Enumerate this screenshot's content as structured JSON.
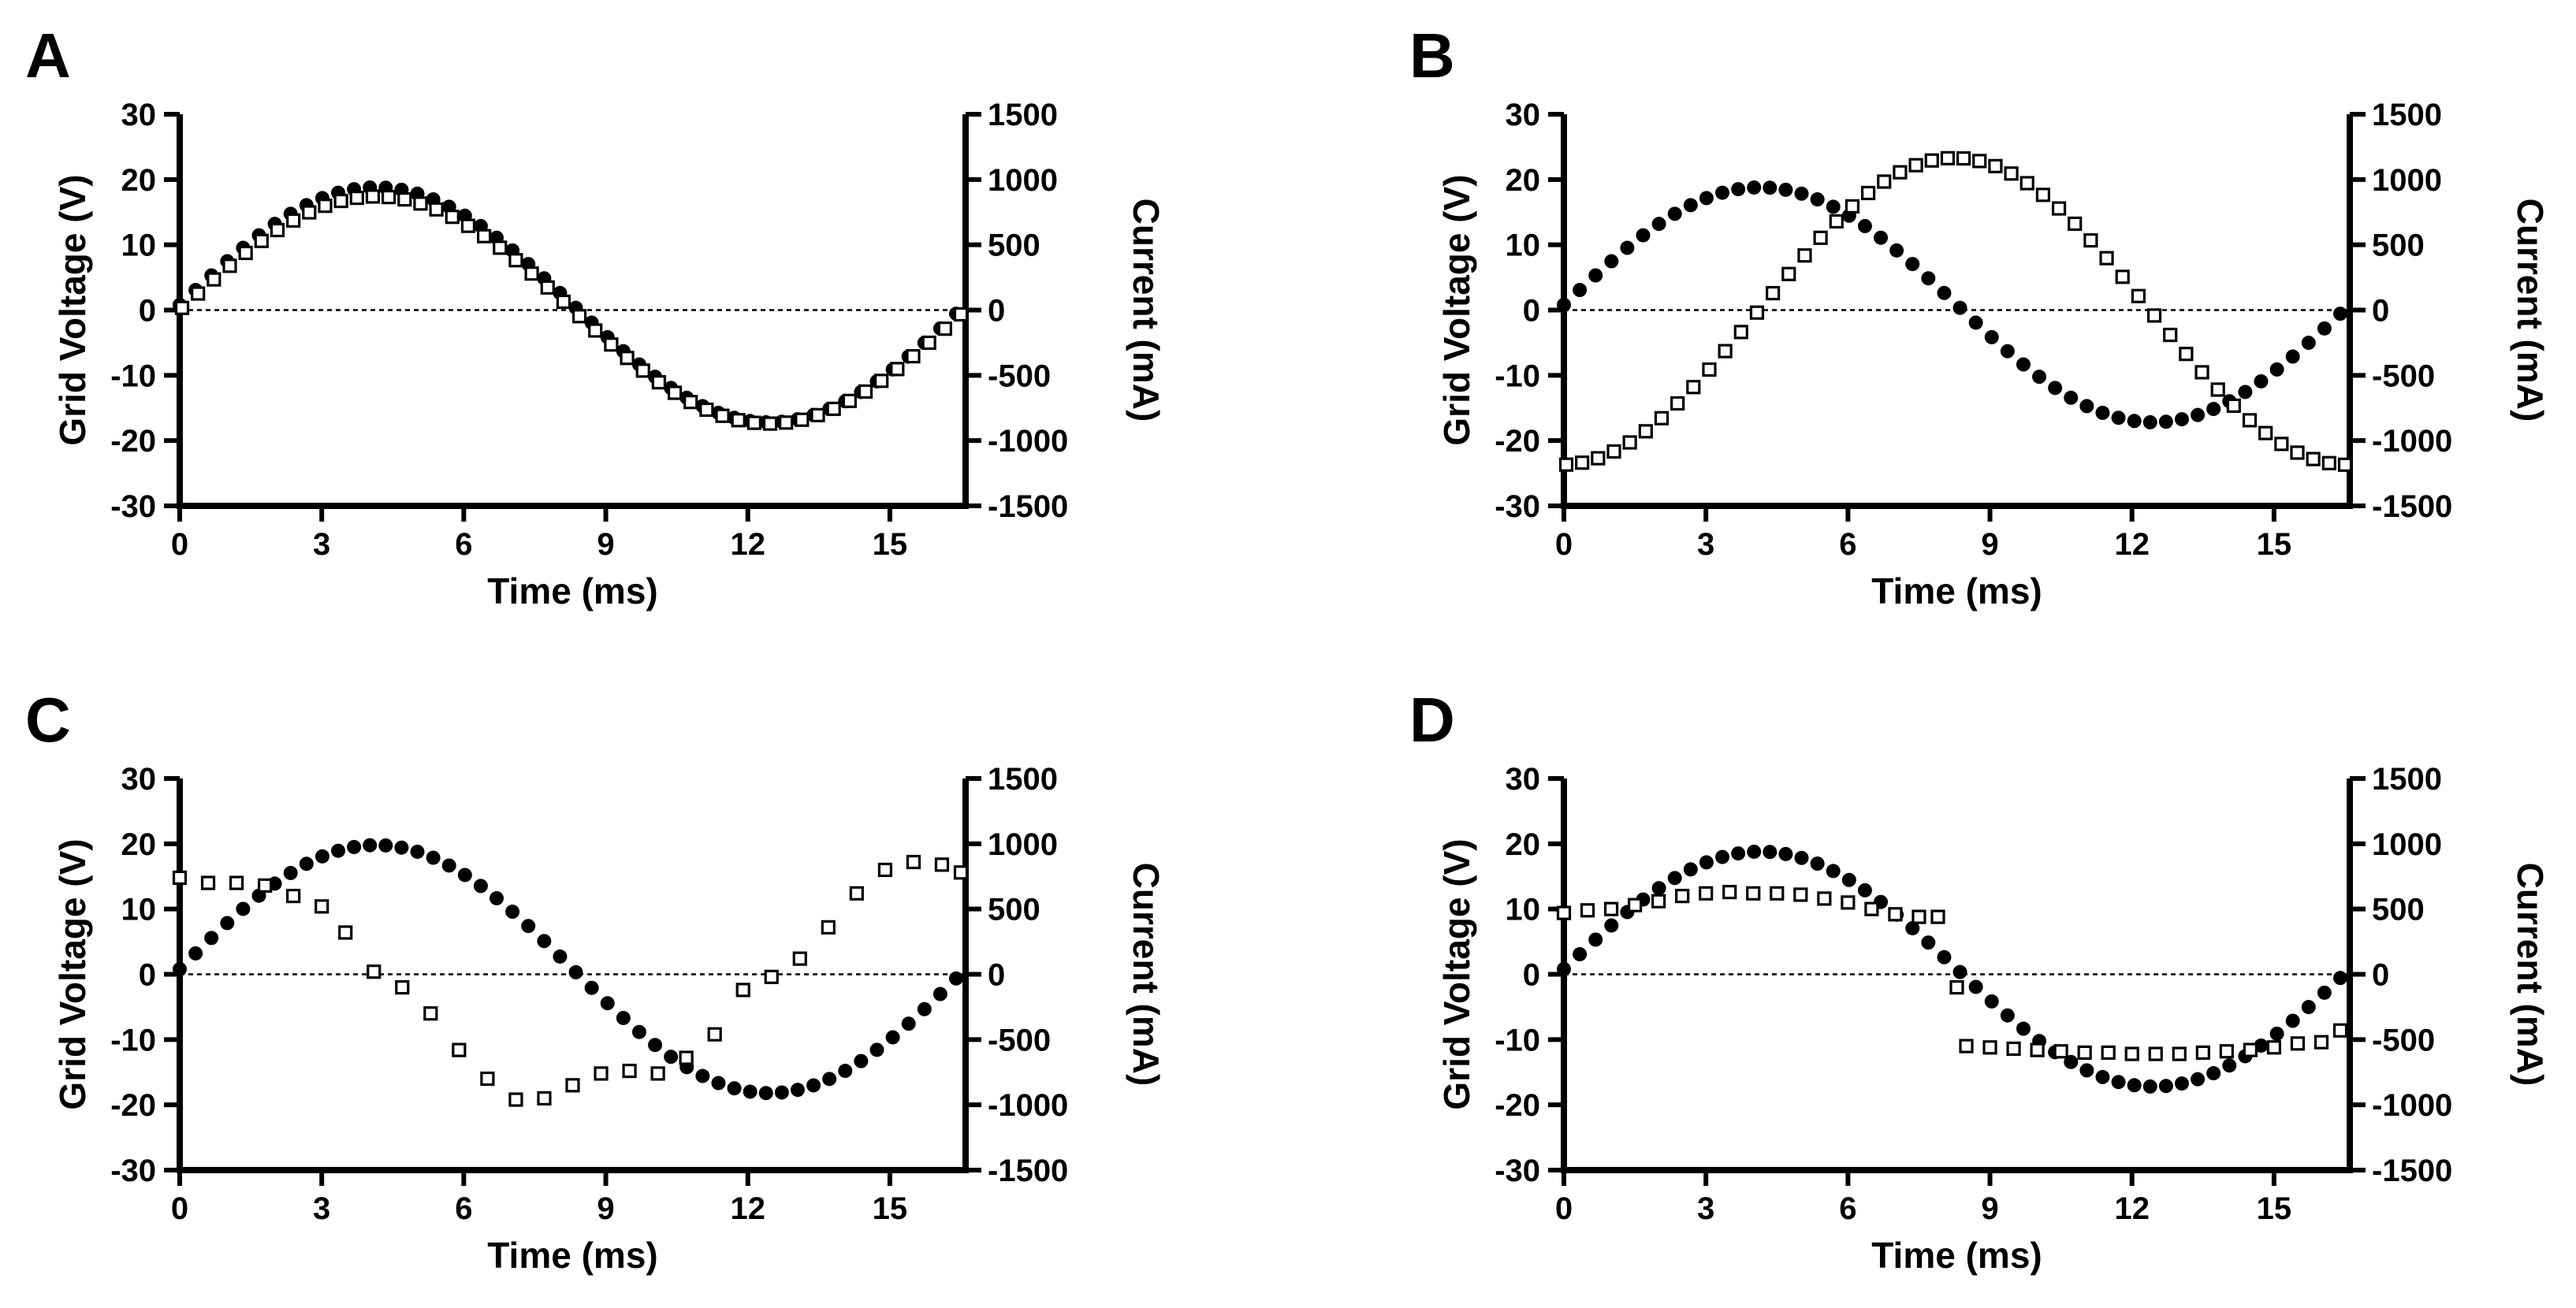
{
  "chart_data": [
    {
      "panel_label": "A",
      "type": "scatter",
      "xlabel": "Time (ms)",
      "ylabel_left": "Grid Voltage (V)",
      "ylabel_right": "Current (mA)",
      "xlim": [
        0,
        16.6
      ],
      "ylim_left": [
        -30,
        30
      ],
      "ylim_right": [
        -1500,
        1500
      ],
      "xticks": [
        0,
        3,
        6,
        9,
        12,
        15
      ],
      "yticks_left": [
        -30,
        -20,
        -10,
        0,
        10,
        20,
        30
      ],
      "yticks_right": [
        -1500,
        -1000,
        -500,
        0,
        500,
        1000,
        1500
      ],
      "zero_reference_line": true,
      "series": [
        {
          "marker": "filled-circle",
          "axis": "left",
          "kind": "sine",
          "params": {
            "amp": 18,
            "period": 16.6,
            "phase_ms": 0,
            "offset": 0.8,
            "n": 50,
            "x0": 0,
            "x1": 16.4
          }
        },
        {
          "marker": "open-square",
          "axis": "right",
          "kind": "sine",
          "params": {
            "amp": 870,
            "period": 16.6,
            "phase_ms": 0,
            "offset": 0,
            "n": 50,
            "x0": 0.05,
            "x1": 16.5
          }
        }
      ]
    },
    {
      "panel_label": "B",
      "type": "scatter",
      "xlabel": "Time (ms)",
      "ylabel_left": "Grid Voltage (V)",
      "ylabel_right": "Current (mA)",
      "xlim": [
        0,
        16.6
      ],
      "ylim_left": [
        -30,
        30
      ],
      "ylim_right": [
        -1500,
        1500
      ],
      "xticks": [
        0,
        3,
        6,
        9,
        12,
        15
      ],
      "yticks_left": [
        -30,
        -20,
        -10,
        0,
        10,
        20,
        30
      ],
      "yticks_right": [
        -1500,
        -1000,
        -500,
        0,
        500,
        1000,
        1500
      ],
      "zero_reference_line": true,
      "series": [
        {
          "marker": "filled-circle",
          "axis": "left",
          "kind": "sine",
          "params": {
            "amp": 18,
            "period": 16.6,
            "phase_ms": 0,
            "offset": 0.8,
            "n": 50,
            "x0": 0,
            "x1": 16.4
          }
        },
        {
          "marker": "open-square",
          "axis": "right",
          "kind": "sine",
          "params": {
            "amp": 1175,
            "period": 16.6,
            "phase_ms": -4.1,
            "offset": -10,
            "n": 50,
            "x0": 0.05,
            "x1": 16.5
          }
        }
      ]
    },
    {
      "panel_label": "C",
      "type": "scatter",
      "xlabel": "Time (ms)",
      "ylabel_left": "Grid Voltage (V)",
      "ylabel_right": "Current (mA)",
      "xlim": [
        0,
        16.6
      ],
      "ylim_left": [
        -30,
        30
      ],
      "ylim_right": [
        -1500,
        1500
      ],
      "xticks": [
        0,
        3,
        6,
        9,
        12,
        15
      ],
      "yticks_left": [
        -30,
        -20,
        -10,
        0,
        10,
        20,
        30
      ],
      "yticks_right": [
        -1500,
        -1000,
        -500,
        0,
        500,
        1000,
        1500
      ],
      "zero_reference_line": true,
      "series": [
        {
          "marker": "filled-circle",
          "axis": "left",
          "kind": "sine",
          "params": {
            "amp": 19,
            "period": 16.6,
            "phase_ms": 0,
            "offset": 0.8,
            "n": 50,
            "x0": 0,
            "x1": 16.4
          }
        },
        {
          "marker": "open-square",
          "axis": "right",
          "kind": "points",
          "x": [
            0,
            0.6,
            1.2,
            1.8,
            2.4,
            3.0,
            3.5,
            4.1,
            4.7,
            5.3,
            5.9,
            6.5,
            7.1,
            7.7,
            8.3,
            8.9,
            9.5,
            10.1,
            10.7,
            11.3,
            11.9,
            12.5,
            13.1,
            13.7,
            14.3,
            14.9,
            15.5,
            16.1,
            16.5
          ],
          "y": [
            740,
            700,
            700,
            680,
            600,
            520,
            320,
            20,
            -100,
            -300,
            -580,
            -800,
            -960,
            -950,
            -850,
            -760,
            -740,
            -760,
            -640,
            -460,
            -120,
            -20,
            120,
            360,
            620,
            800,
            860,
            840,
            780
          ]
        }
      ]
    },
    {
      "panel_label": "D",
      "type": "scatter",
      "xlabel": "Time (ms)",
      "ylabel_left": "Grid Voltage (V)",
      "ylabel_right": "Current (mA)",
      "xlim": [
        0,
        16.6
      ],
      "ylim_left": [
        -30,
        30
      ],
      "ylim_right": [
        -1500,
        1500
      ],
      "xticks": [
        0,
        3,
        6,
        9,
        12,
        15
      ],
      "yticks_left": [
        -30,
        -20,
        -10,
        0,
        10,
        20,
        30
      ],
      "yticks_right": [
        -1500,
        -1000,
        -500,
        0,
        500,
        1000,
        1500
      ],
      "zero_reference_line": true,
      "series": [
        {
          "marker": "filled-circle",
          "axis": "left",
          "kind": "sine",
          "params": {
            "amp": 18,
            "period": 16.6,
            "phase_ms": 0,
            "offset": 0.8,
            "n": 50,
            "x0": 0,
            "x1": 16.4
          }
        },
        {
          "marker": "open-square",
          "axis": "right",
          "kind": "points",
          "x": [
            0,
            0.5,
            1.0,
            1.5,
            2.0,
            2.5,
            3.0,
            3.5,
            4.0,
            4.5,
            5.0,
            5.5,
            6.0,
            6.5,
            7.0,
            7.5,
            7.9,
            8.3,
            8.5,
            9.0,
            9.5,
            10.0,
            10.5,
            11.0,
            11.5,
            12.0,
            12.5,
            13.0,
            13.5,
            14.0,
            14.5,
            15.0,
            15.5,
            16.0,
            16.4
          ],
          "y": [
            470,
            490,
            500,
            530,
            560,
            600,
            620,
            630,
            620,
            620,
            610,
            580,
            550,
            500,
            460,
            440,
            440,
            -100,
            -550,
            -560,
            -570,
            -580,
            -590,
            -600,
            -600,
            -610,
            -610,
            -610,
            -600,
            -590,
            -580,
            -560,
            -530,
            -520,
            -430
          ]
        }
      ]
    }
  ]
}
